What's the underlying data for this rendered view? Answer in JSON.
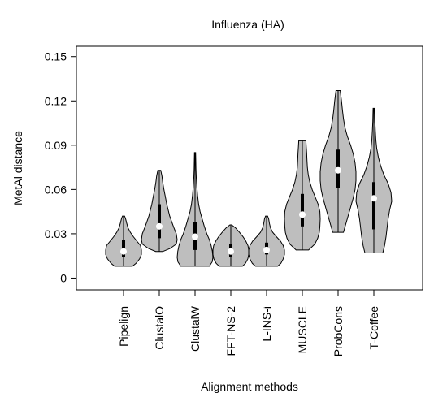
{
  "chart_data": {
    "type": "violin",
    "title": "Influenza (HA)",
    "xlabel": "Alignment methods",
    "ylabel": "MetAl distance",
    "ylim": [
      -0.008,
      0.157
    ],
    "yticks": [
      0,
      0.03,
      0.06,
      0.09,
      0.12,
      0.15
    ],
    "ytick_labels": [
      "0",
      "0.03",
      "0.06",
      "0.09",
      "0.12",
      "0.15"
    ],
    "grid": false,
    "legend": "none",
    "colors": {
      "violin_fill": "#bebebe",
      "violin_stroke": "#000000",
      "box": "#000000",
      "median_marker": "#ffffff"
    },
    "categories": [
      "Pipelign",
      "ClustalO",
      "ClustalW",
      "FFT-NS-2",
      "L-INS-i",
      "MUSCLE",
      "ProbCons",
      "T-Coffee"
    ],
    "series": [
      {
        "category": "Pipelign",
        "min": 0.008,
        "q1": 0.014,
        "median": 0.018,
        "q3": 0.026,
        "max": 0.042,
        "density": [
          [
            0.008,
            0.5
          ],
          [
            0.01,
            0.7
          ],
          [
            0.013,
            0.9
          ],
          [
            0.016,
            1.0
          ],
          [
            0.019,
            1.0
          ],
          [
            0.022,
            0.95
          ],
          [
            0.025,
            0.75
          ],
          [
            0.028,
            0.55
          ],
          [
            0.031,
            0.38
          ],
          [
            0.034,
            0.25
          ],
          [
            0.037,
            0.18
          ],
          [
            0.04,
            0.12
          ],
          [
            0.042,
            0.06
          ]
        ]
      },
      {
        "category": "ClustalO",
        "min": 0.018,
        "q1": 0.027,
        "median": 0.035,
        "q3": 0.05,
        "max": 0.073,
        "density": [
          [
            0.018,
            0.2
          ],
          [
            0.02,
            0.6
          ],
          [
            0.023,
            0.95
          ],
          [
            0.026,
            1.0
          ],
          [
            0.03,
            0.95
          ],
          [
            0.034,
            0.82
          ],
          [
            0.038,
            0.7
          ],
          [
            0.042,
            0.58
          ],
          [
            0.046,
            0.5
          ],
          [
            0.05,
            0.42
          ],
          [
            0.055,
            0.34
          ],
          [
            0.06,
            0.26
          ],
          [
            0.065,
            0.19
          ],
          [
            0.069,
            0.15
          ],
          [
            0.073,
            0.08
          ]
        ]
      },
      {
        "category": "ClustalW",
        "min": 0.008,
        "q1": 0.019,
        "median": 0.028,
        "q3": 0.038,
        "max": 0.085,
        "density": [
          [
            0.008,
            0.8
          ],
          [
            0.011,
            0.96
          ],
          [
            0.014,
            1.0
          ],
          [
            0.018,
            0.97
          ],
          [
            0.022,
            0.9
          ],
          [
            0.026,
            0.8
          ],
          [
            0.03,
            0.66
          ],
          [
            0.035,
            0.52
          ],
          [
            0.04,
            0.4
          ],
          [
            0.045,
            0.28
          ],
          [
            0.05,
            0.2
          ],
          [
            0.056,
            0.14
          ],
          [
            0.062,
            0.1
          ],
          [
            0.068,
            0.07
          ],
          [
            0.074,
            0.05
          ],
          [
            0.08,
            0.04
          ],
          [
            0.085,
            0.03
          ]
        ]
      },
      {
        "category": "FFT-NS-2",
        "min": 0.008,
        "q1": 0.014,
        "median": 0.018,
        "q3": 0.023,
        "max": 0.036,
        "density": [
          [
            0.008,
            0.65
          ],
          [
            0.01,
            0.82
          ],
          [
            0.013,
            0.95
          ],
          [
            0.016,
            1.0
          ],
          [
            0.019,
            1.0
          ],
          [
            0.022,
            0.96
          ],
          [
            0.025,
            0.84
          ],
          [
            0.028,
            0.68
          ],
          [
            0.031,
            0.48
          ],
          [
            0.034,
            0.26
          ],
          [
            0.036,
            0.05
          ]
        ]
      },
      {
        "category": "L-INS-i",
        "min": 0.008,
        "q1": 0.016,
        "median": 0.019,
        "q3": 0.024,
        "max": 0.042,
        "density": [
          [
            0.008,
            0.62
          ],
          [
            0.01,
            0.8
          ],
          [
            0.013,
            0.93
          ],
          [
            0.016,
            1.0
          ],
          [
            0.019,
            1.0
          ],
          [
            0.022,
            0.93
          ],
          [
            0.025,
            0.78
          ],
          [
            0.028,
            0.55
          ],
          [
            0.031,
            0.34
          ],
          [
            0.034,
            0.22
          ],
          [
            0.037,
            0.16
          ],
          [
            0.04,
            0.12
          ],
          [
            0.042,
            0.06
          ]
        ]
      },
      {
        "category": "MUSCLE",
        "min": 0.019,
        "q1": 0.035,
        "median": 0.043,
        "q3": 0.057,
        "max": 0.093,
        "density": [
          [
            0.019,
            0.35
          ],
          [
            0.023,
            0.7
          ],
          [
            0.027,
            0.86
          ],
          [
            0.031,
            0.95
          ],
          [
            0.035,
            0.98
          ],
          [
            0.04,
            1.0
          ],
          [
            0.045,
            0.98
          ],
          [
            0.05,
            0.88
          ],
          [
            0.055,
            0.72
          ],
          [
            0.06,
            0.55
          ],
          [
            0.065,
            0.42
          ],
          [
            0.07,
            0.33
          ],
          [
            0.075,
            0.28
          ],
          [
            0.08,
            0.26
          ],
          [
            0.085,
            0.24
          ],
          [
            0.089,
            0.22
          ],
          [
            0.093,
            0.2
          ]
        ]
      },
      {
        "category": "ProbCons",
        "min": 0.031,
        "q1": 0.061,
        "median": 0.073,
        "q3": 0.087,
        "max": 0.127,
        "density": [
          [
            0.031,
            0.3
          ],
          [
            0.036,
            0.42
          ],
          [
            0.042,
            0.56
          ],
          [
            0.048,
            0.7
          ],
          [
            0.054,
            0.84
          ],
          [
            0.06,
            0.95
          ],
          [
            0.066,
            1.0
          ],
          [
            0.072,
            1.0
          ],
          [
            0.078,
            0.95
          ],
          [
            0.084,
            0.85
          ],
          [
            0.09,
            0.7
          ],
          [
            0.096,
            0.52
          ],
          [
            0.102,
            0.38
          ],
          [
            0.108,
            0.3
          ],
          [
            0.114,
            0.24
          ],
          [
            0.12,
            0.19
          ],
          [
            0.124,
            0.15
          ],
          [
            0.127,
            0.12
          ]
        ]
      },
      {
        "category": "T-Coffee",
        "min": 0.017,
        "q1": 0.033,
        "median": 0.054,
        "q3": 0.065,
        "max": 0.115,
        "density": [
          [
            0.017,
            0.5
          ],
          [
            0.022,
            0.6
          ],
          [
            0.028,
            0.68
          ],
          [
            0.034,
            0.74
          ],
          [
            0.04,
            0.8
          ],
          [
            0.046,
            0.88
          ],
          [
            0.052,
            1.0
          ],
          [
            0.058,
            0.96
          ],
          [
            0.064,
            0.8
          ],
          [
            0.07,
            0.56
          ],
          [
            0.076,
            0.38
          ],
          [
            0.082,
            0.25
          ],
          [
            0.088,
            0.16
          ],
          [
            0.094,
            0.11
          ],
          [
            0.1,
            0.08
          ],
          [
            0.106,
            0.06
          ],
          [
            0.111,
            0.05
          ],
          [
            0.115,
            0.04
          ]
        ]
      }
    ]
  }
}
